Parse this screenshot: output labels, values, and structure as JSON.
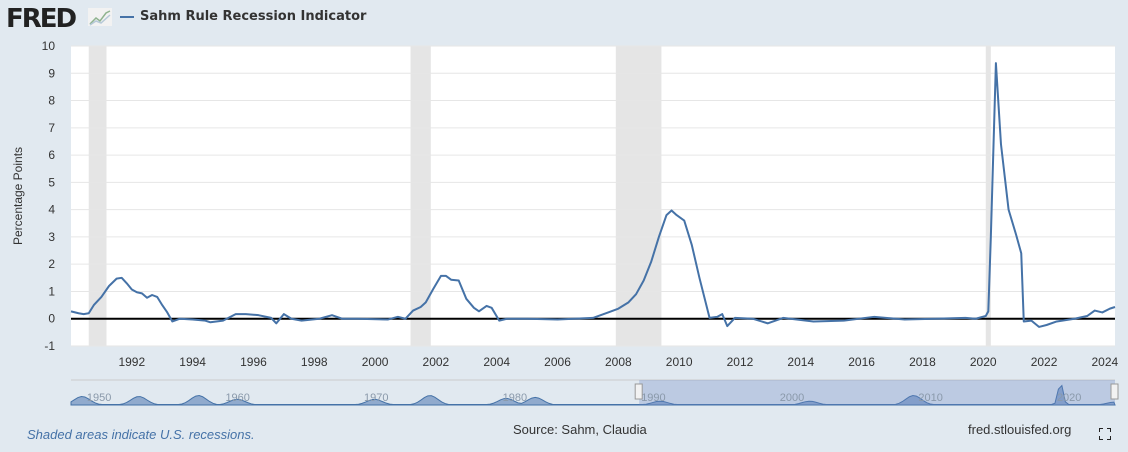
{
  "header": {
    "logo": "FRED",
    "series_title": "Sahm Rule Recession Indicator"
  },
  "footer": {
    "note": "Shaded areas indicate U.S. recessions.",
    "source": "Source: Sahm, Claudia",
    "site": "fred.stlouisfed.org"
  },
  "colors": {
    "series": "#4572a7",
    "recession": "#e5e5e5",
    "zero_line": "#000000",
    "background": "#e1e9f0"
  },
  "icons": {
    "logo_graph": "line-chart-icon",
    "fullscreen": "fullscreen-icon"
  },
  "chart_data": {
    "type": "line",
    "ylabel": "Percentage Points",
    "ylim": [
      -1,
      10
    ],
    "yticks": [
      -1,
      0,
      1,
      2,
      3,
      4,
      5,
      6,
      7,
      8,
      9,
      10
    ],
    "xlim": [
      "1990-01",
      "2024-05"
    ],
    "xticks": [
      "1992",
      "1994",
      "1996",
      "1998",
      "2000",
      "2002",
      "2004",
      "2006",
      "2008",
      "2010",
      "2012",
      "2014",
      "2016",
      "2018",
      "2020",
      "2022",
      "2024"
    ],
    "grid": true,
    "recessions": [
      [
        "1990-08",
        "1991-03"
      ],
      [
        "2001-03",
        "2001-11"
      ],
      [
        "2007-12",
        "2009-06"
      ],
      [
        "2020-02",
        "2020-04"
      ]
    ],
    "series": [
      {
        "name": "Sahm Rule Recession Indicator",
        "points": [
          [
            "1990-01",
            0.27
          ],
          [
            "1990-04",
            0.2
          ],
          [
            "1990-06",
            0.17
          ],
          [
            "1990-08",
            0.2
          ],
          [
            "1990-10",
            0.5
          ],
          [
            "1991-01",
            0.8
          ],
          [
            "1991-04",
            1.2
          ],
          [
            "1991-07",
            1.47
          ],
          [
            "1991-09",
            1.5
          ],
          [
            "1991-11",
            1.3
          ],
          [
            "1992-01",
            1.07
          ],
          [
            "1992-03",
            0.97
          ],
          [
            "1992-05",
            0.93
          ],
          [
            "1992-07",
            0.77
          ],
          [
            "1992-09",
            0.87
          ],
          [
            "1992-11",
            0.8
          ],
          [
            "1993-01",
            0.5
          ],
          [
            "1993-03",
            0.23
          ],
          [
            "1993-05",
            -0.1
          ],
          [
            "1993-08",
            0.0
          ],
          [
            "1994-01",
            -0.03
          ],
          [
            "1994-06",
            -0.07
          ],
          [
            "1994-08",
            -0.13
          ],
          [
            "1995-01",
            -0.07
          ],
          [
            "1995-06",
            0.17
          ],
          [
            "1995-10",
            0.17
          ],
          [
            "1996-03",
            0.13
          ],
          [
            "1996-08",
            0.03
          ],
          [
            "1996-10",
            -0.17
          ],
          [
            "1997-01",
            0.17
          ],
          [
            "1997-04",
            0.0
          ],
          [
            "1997-08",
            -0.07
          ],
          [
            "1998-03",
            0.0
          ],
          [
            "1998-08",
            0.13
          ],
          [
            "1998-12",
            0.0
          ],
          [
            "1999-06",
            0.0
          ],
          [
            "2000-06",
            -0.03
          ],
          [
            "2000-10",
            0.07
          ],
          [
            "2001-01",
            0.0
          ],
          [
            "2001-04",
            0.3
          ],
          [
            "2001-07",
            0.43
          ],
          [
            "2001-09",
            0.6
          ],
          [
            "2001-12",
            1.1
          ],
          [
            "2002-03",
            1.57
          ],
          [
            "2002-05",
            1.57
          ],
          [
            "2002-07",
            1.43
          ],
          [
            "2002-10",
            1.4
          ],
          [
            "2003-01",
            0.73
          ],
          [
            "2003-04",
            0.4
          ],
          [
            "2003-06",
            0.27
          ],
          [
            "2003-09",
            0.47
          ],
          [
            "2003-11",
            0.4
          ],
          [
            "2004-02",
            -0.07
          ],
          [
            "2004-05",
            0.0
          ],
          [
            "2005-01",
            0.0
          ],
          [
            "2006-01",
            -0.03
          ],
          [
            "2007-03",
            0.03
          ],
          [
            "2007-09",
            0.23
          ],
          [
            "2008-01",
            0.37
          ],
          [
            "2008-05",
            0.6
          ],
          [
            "2008-08",
            0.9
          ],
          [
            "2008-11",
            1.4
          ],
          [
            "2009-02",
            2.1
          ],
          [
            "2009-05",
            3.0
          ],
          [
            "2009-08",
            3.8
          ],
          [
            "2009-10",
            3.97
          ],
          [
            "2009-12",
            3.8
          ],
          [
            "2010-03",
            3.6
          ],
          [
            "2010-06",
            2.7
          ],
          [
            "2010-09",
            1.5
          ],
          [
            "2011-01",
            0.03
          ],
          [
            "2011-04",
            0.07
          ],
          [
            "2011-06",
            0.17
          ],
          [
            "2011-08",
            -0.27
          ],
          [
            "2011-11",
            0.03
          ],
          [
            "2012-06",
            0.0
          ],
          [
            "2012-12",
            -0.17
          ],
          [
            "2013-06",
            0.03
          ],
          [
            "2014-06",
            -0.1
          ],
          [
            "2015-06",
            -0.07
          ],
          [
            "2016-06",
            0.07
          ],
          [
            "2017-06",
            -0.03
          ],
          [
            "2018-06",
            0.0
          ],
          [
            "2019-06",
            0.03
          ],
          [
            "2019-10",
            0.0
          ],
          [
            "2020-02",
            0.1
          ],
          [
            "2020-03",
            0.27
          ],
          [
            "2020-04",
            3.0
          ],
          [
            "2020-06",
            9.37
          ],
          [
            "2020-08",
            6.4
          ],
          [
            "2020-11",
            4.0
          ],
          [
            "2021-02",
            3.07
          ],
          [
            "2021-04",
            2.4
          ],
          [
            "2021-05",
            -0.1
          ],
          [
            "2021-08",
            -0.07
          ],
          [
            "2021-11",
            -0.3
          ],
          [
            "2022-02",
            -0.23
          ],
          [
            "2022-06",
            -0.1
          ],
          [
            "2023-01",
            0.0
          ],
          [
            "2023-06",
            0.1
          ],
          [
            "2023-09",
            0.3
          ],
          [
            "2023-12",
            0.23
          ],
          [
            "2024-03",
            0.37
          ],
          [
            "2024-05",
            0.43
          ]
        ]
      }
    ],
    "navigator": {
      "range": [
        "1949-01",
        "2024-05"
      ],
      "selected": [
        "1990-01",
        "2024-05"
      ],
      "labels": [
        "1950",
        "1960",
        "1970",
        "1980",
        "1990",
        "2000",
        "2010",
        "2020"
      ]
    }
  }
}
